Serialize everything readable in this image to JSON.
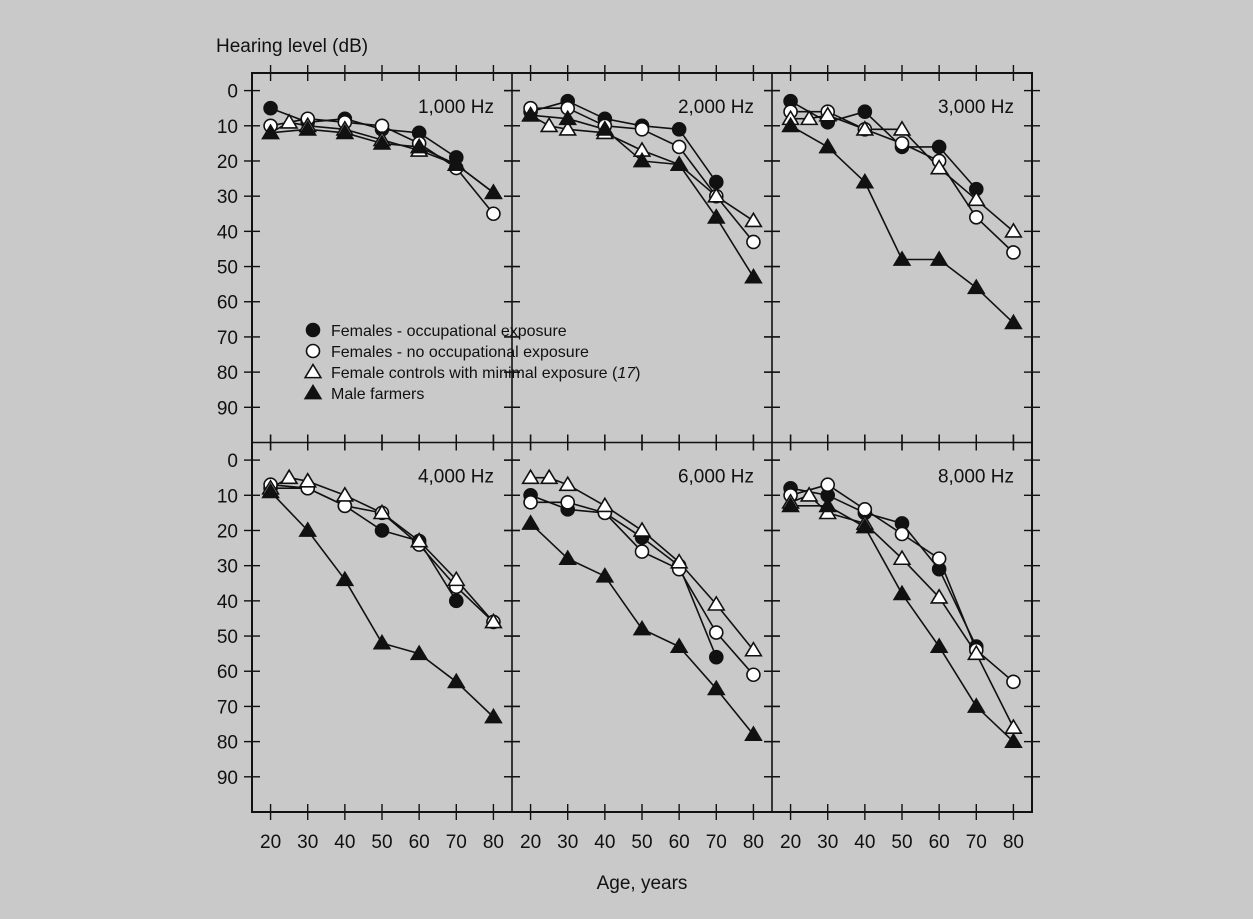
{
  "chart_data": {
    "type": "line",
    "ylabel": "Hearing level (dB)",
    "xlabel": "Age, years",
    "y_inverted": true,
    "ylim": [
      -5,
      100
    ],
    "yticks": [
      0,
      10,
      20,
      30,
      40,
      50,
      60,
      70,
      80,
      90
    ],
    "xlim": [
      15,
      85
    ],
    "xticks": [
      20,
      30,
      40,
      50,
      60,
      70,
      80
    ],
    "grid": false,
    "legend_position": "inside upper-left panel, lower-left",
    "legend": [
      {
        "key": "females_occ",
        "label": "Females - occupational exposure",
        "marker": "filled-circle"
      },
      {
        "key": "females_no",
        "label": "Females - no occupational exposure",
        "marker": "open-circle"
      },
      {
        "key": "female_controls",
        "label": "Female controls with minimal exposure",
        "ref": "17",
        "marker": "open-triangle"
      },
      {
        "key": "male_farmers",
        "label": "Male farmers",
        "marker": "filled-triangle"
      }
    ],
    "panels": [
      {
        "title": "1,000 Hz",
        "series": [
          {
            "key": "females_occ",
            "x": [
              20,
              30,
              40,
              50,
              60,
              70
            ],
            "y": [
              5,
              9,
              8,
              11,
              12,
              19
            ]
          },
          {
            "key": "females_no",
            "x": [
              20,
              30,
              40,
              50,
              60,
              70,
              80
            ],
            "y": [
              10,
              8,
              9,
              10,
              15,
              22,
              35
            ]
          },
          {
            "key": "female_controls",
            "x": [
              20,
              25,
              30,
              40,
              50,
              60,
              70,
              80
            ],
            "y": [
              12,
              9,
              10,
              11,
              14,
              17,
              21,
              29
            ]
          },
          {
            "key": "male_farmers",
            "x": [
              20,
              30,
              40,
              50,
              60,
              70,
              80
            ],
            "y": [
              12,
              11,
              12,
              15,
              16,
              21,
              29
            ]
          }
        ]
      },
      {
        "title": "2,000 Hz",
        "series": [
          {
            "key": "females_occ",
            "x": [
              20,
              30,
              40,
              50,
              60,
              70
            ],
            "y": [
              6,
              3,
              8,
              10,
              11,
              26
            ]
          },
          {
            "key": "females_no",
            "x": [
              20,
              30,
              40,
              50,
              60,
              70,
              80
            ],
            "y": [
              5,
              5,
              10,
              11,
              16,
              30,
              43
            ]
          },
          {
            "key": "female_controls",
            "x": [
              20,
              25,
              30,
              40,
              50,
              60,
              70,
              80
            ],
            "y": [
              7,
              10,
              11,
              12,
              17,
              21,
              30,
              37
            ]
          },
          {
            "key": "male_farmers",
            "x": [
              20,
              30,
              40,
              50,
              60,
              70,
              80
            ],
            "y": [
              7,
              8,
              11,
              20,
              21,
              36,
              53
            ]
          }
        ]
      },
      {
        "title": "3,000 Hz",
        "series": [
          {
            "key": "females_occ",
            "x": [
              20,
              30,
              40,
              50,
              60,
              70
            ],
            "y": [
              3,
              9,
              6,
              16,
              16,
              28
            ]
          },
          {
            "key": "females_no",
            "x": [
              20,
              30,
              40,
              50,
              60,
              70,
              80
            ],
            "y": [
              6,
              6,
              11,
              15,
              20,
              36,
              46
            ]
          },
          {
            "key": "female_controls",
            "x": [
              20,
              25,
              30,
              40,
              50,
              60,
              70,
              80
            ],
            "y": [
              8,
              8,
              7,
              11,
              11,
              22,
              31,
              40
            ]
          },
          {
            "key": "male_farmers",
            "x": [
              20,
              30,
              40,
              50,
              60,
              70,
              80
            ],
            "y": [
              10,
              16,
              26,
              48,
              48,
              56,
              66
            ]
          }
        ]
      },
      {
        "title": "4,000 Hz",
        "series": [
          {
            "key": "females_occ",
            "x": [
              20,
              30,
              40,
              50,
              60,
              70
            ],
            "y": [
              8,
              8,
              13,
              20,
              23,
              40
            ]
          },
          {
            "key": "females_no",
            "x": [
              20,
              30,
              40,
              50,
              60,
              70,
              80
            ],
            "y": [
              7,
              8,
              13,
              15,
              24,
              36,
              46
            ]
          },
          {
            "key": "female_controls",
            "x": [
              20,
              25,
              30,
              40,
              50,
              60,
              70,
              80
            ],
            "y": [
              8,
              5,
              6,
              10,
              15,
              23,
              34,
              46
            ]
          },
          {
            "key": "male_farmers",
            "x": [
              20,
              30,
              40,
              50,
              60,
              70,
              80
            ],
            "y": [
              9,
              20,
              34,
              52,
              55,
              63,
              73
            ]
          }
        ]
      },
      {
        "title": "6,000 Hz",
        "series": [
          {
            "key": "females_occ",
            "x": [
              20,
              30,
              40,
              50,
              60,
              70
            ],
            "y": [
              10,
              14,
              15,
              22,
              30,
              56
            ]
          },
          {
            "key": "females_no",
            "x": [
              20,
              30,
              40,
              50,
              60,
              70,
              80
            ],
            "y": [
              12,
              12,
              15,
              26,
              31,
              49,
              61
            ]
          },
          {
            "key": "female_controls",
            "x": [
              20,
              25,
              30,
              40,
              50,
              60,
              70,
              80
            ],
            "y": [
              5,
              5,
              7,
              13,
              20,
              29,
              41,
              54
            ]
          },
          {
            "key": "male_farmers",
            "x": [
              20,
              30,
              40,
              50,
              60,
              70,
              80
            ],
            "y": [
              18,
              28,
              33,
              48,
              53,
              65,
              78
            ]
          }
        ]
      },
      {
        "title": "8,000 Hz",
        "series": [
          {
            "key": "females_occ",
            "x": [
              20,
              30,
              40,
              50,
              60,
              70
            ],
            "y": [
              8,
              10,
              15,
              18,
              31,
              53
            ]
          },
          {
            "key": "females_no",
            "x": [
              20,
              30,
              40,
              50,
              60,
              70,
              80
            ],
            "y": [
              10,
              7,
              14,
              21,
              28,
              54,
              63
            ]
          },
          {
            "key": "female_controls",
            "x": [
              20,
              25,
              30,
              40,
              50,
              60,
              70,
              80
            ],
            "y": [
              12,
              10,
              15,
              18,
              28,
              39,
              55,
              76
            ]
          },
          {
            "key": "male_farmers",
            "x": [
              20,
              30,
              40,
              50,
              60,
              70,
              80
            ],
            "y": [
              13,
              13,
              19,
              38,
              53,
              70,
              80
            ]
          }
        ]
      }
    ]
  }
}
